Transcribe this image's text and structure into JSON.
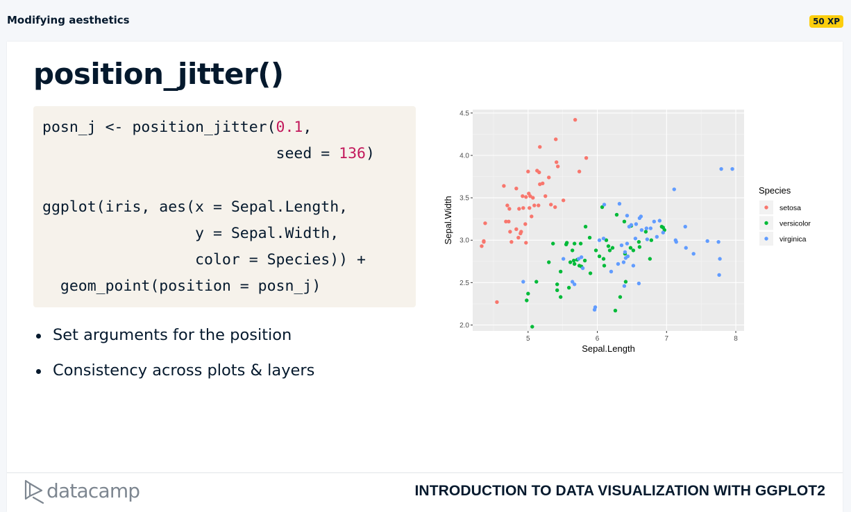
{
  "topbar": {
    "title": "Modifying aesthetics",
    "xp": "50 XP"
  },
  "slide": {
    "title": "position_jitter()",
    "code": [
      [
        [
          "posn_j <- position_jitter(",
          "t"
        ],
        [
          "0.1",
          "n"
        ],
        [
          ",",
          "t"
        ]
      ],
      [
        [
          "                          seed = ",
          "t"
        ],
        [
          "136",
          "n"
        ],
        [
          ")",
          "t"
        ]
      ],
      [
        [
          "",
          "t"
        ]
      ],
      [
        [
          "ggplot(iris, aes(x = Sepal.Length,",
          "t"
        ]
      ],
      [
        [
          "                 y = Sepal.Width,",
          "t"
        ]
      ],
      [
        [
          "                 color = Species)) +",
          "t"
        ]
      ],
      [
        [
          "  geom_point(position = posn_j)",
          "t"
        ]
      ]
    ],
    "bullets": [
      "Set arguments for the position",
      "Consistency across plots & layers"
    ]
  },
  "footer": {
    "logo": "datacamp",
    "course": "INTRODUCTION TO DATA VISUALIZATION WITH GGPLOT2"
  },
  "chart_data": {
    "type": "scatter",
    "xlabel": "Sepal.Length",
    "ylabel": "Sepal.Width",
    "xlim": [
      4.2,
      8.12
    ],
    "ylim": [
      1.93,
      4.54
    ],
    "xticks": [
      5,
      6,
      7,
      8
    ],
    "yticks": [
      2.0,
      2.5,
      3.0,
      3.5,
      4.0,
      4.5
    ],
    "ytick_labels": [
      "2.0",
      "2.5",
      "3.0",
      "3.5",
      "4.0",
      "4.5"
    ],
    "grid": true,
    "legend_title": "Species",
    "legend_position": "right",
    "series": [
      {
        "name": "setosa",
        "color": "#f8766d",
        "points": [
          [
            4.36,
            2.99
          ],
          [
            4.38,
            3.2
          ],
          [
            4.33,
            2.93
          ],
          [
            4.36,
            2.98
          ],
          [
            4.55,
            2.27
          ],
          [
            4.65,
            3.64
          ],
          [
            4.68,
            3.22
          ],
          [
            4.7,
            3.41
          ],
          [
            4.73,
            3.37
          ],
          [
            4.72,
            3.22
          ],
          [
            4.74,
            3.1
          ],
          [
            4.76,
            2.98
          ],
          [
            4.83,
            3.61
          ],
          [
            4.83,
            3.13
          ],
          [
            4.86,
            3.03
          ],
          [
            4.87,
            3.37
          ],
          [
            4.89,
            3.08
          ],
          [
            4.9,
            3.1
          ],
          [
            4.92,
            3.52
          ],
          [
            4.93,
            3.38
          ],
          [
            4.96,
            3.19
          ],
          [
            4.97,
            2.97
          ],
          [
            4.97,
            3.51
          ],
          [
            5.0,
            3.81
          ],
          [
            5.01,
            3.55
          ],
          [
            5.02,
            3.38
          ],
          [
            5.03,
            3.52
          ],
          [
            5.05,
            3.28
          ],
          [
            5.07,
            3.5
          ],
          [
            5.09,
            3.41
          ],
          [
            5.13,
            3.82
          ],
          [
            5.15,
            3.41
          ],
          [
            5.16,
            3.8
          ],
          [
            5.17,
            4.1
          ],
          [
            5.17,
            3.66
          ],
          [
            5.21,
            3.67
          ],
          [
            5.25,
            3.52
          ],
          [
            5.3,
            3.74
          ],
          [
            5.33,
            3.42
          ],
          [
            5.39,
            3.39
          ],
          [
            5.41,
            3.92
          ],
          [
            5.43,
            3.87
          ],
          [
            5.4,
            4.19
          ],
          [
            5.51,
            3.47
          ],
          [
            5.68,
            4.42
          ],
          [
            5.74,
            3.81
          ],
          [
            5.84,
            3.97
          ]
        ]
      },
      {
        "name": "versicolor",
        "color": "#00ba38",
        "points": [
          [
            5.06,
            1.98
          ],
          [
            4.98,
            2.29
          ],
          [
            5.0,
            2.37
          ],
          [
            5.12,
            2.51
          ],
          [
            5.3,
            2.74
          ],
          [
            5.36,
            2.96
          ],
          [
            5.42,
            2.48
          ],
          [
            5.42,
            2.41
          ],
          [
            5.47,
            2.33
          ],
          [
            5.47,
            2.63
          ],
          [
            5.55,
            2.95
          ],
          [
            5.56,
            2.97
          ],
          [
            5.59,
            2.44
          ],
          [
            5.61,
            2.74
          ],
          [
            5.64,
            2.88
          ],
          [
            5.66,
            2.76
          ],
          [
            5.67,
            2.96
          ],
          [
            5.67,
            2.72
          ],
          [
            5.71,
            2.77
          ],
          [
            5.74,
            2.7
          ],
          [
            5.76,
            2.96
          ],
          [
            5.77,
            2.69
          ],
          [
            5.82,
            2.76
          ],
          [
            5.83,
            3.16
          ],
          [
            5.89,
            3.03
          ],
          [
            5.9,
            2.61
          ],
          [
            5.98,
            2.88
          ],
          [
            6.03,
            2.81
          ],
          [
            6.07,
            3.39
          ],
          [
            6.1,
            2.7
          ],
          [
            6.09,
            2.78
          ],
          [
            6.13,
            3.0
          ],
          [
            6.16,
            2.93
          ],
          [
            6.18,
            2.88
          ],
          [
            6.22,
            2.91
          ],
          [
            6.26,
            2.17
          ],
          [
            6.28,
            3.3
          ],
          [
            6.33,
            2.33
          ],
          [
            6.39,
            3.22
          ],
          [
            6.4,
            2.84
          ],
          [
            6.41,
            2.51
          ],
          [
            6.49,
            3.17
          ],
          [
            6.48,
            2.91
          ],
          [
            6.52,
            2.88
          ],
          [
            6.6,
            2.98
          ],
          [
            6.61,
            2.92
          ],
          [
            6.7,
            3.1
          ],
          [
            6.76,
            2.78
          ],
          [
            6.78,
            3.0
          ],
          [
            6.93,
            3.16
          ],
          [
            6.95,
            3.15
          ],
          [
            6.97,
            3.12
          ]
        ]
      },
      {
        "name": "virginica",
        "color": "#619cff",
        "points": [
          [
            4.93,
            2.51
          ],
          [
            5.51,
            2.78
          ],
          [
            5.64,
            2.51
          ],
          [
            5.67,
            2.48
          ],
          [
            5.73,
            2.78
          ],
          [
            5.77,
            2.8
          ],
          [
            5.79,
            2.67
          ],
          [
            5.96,
            2.18
          ],
          [
            5.97,
            2.21
          ],
          [
            6.03,
            3.0
          ],
          [
            6.09,
            3.02
          ],
          [
            6.1,
            3.42
          ],
          [
            6.2,
            2.63
          ],
          [
            6.3,
            2.72
          ],
          [
            6.32,
            3.43
          ],
          [
            6.35,
            2.94
          ],
          [
            6.38,
            2.74
          ],
          [
            6.39,
            2.46
          ],
          [
            6.4,
            2.86
          ],
          [
            6.41,
            2.79
          ],
          [
            6.43,
            3.29
          ],
          [
            6.43,
            2.96
          ],
          [
            6.44,
            2.81
          ],
          [
            6.46,
            3.16
          ],
          [
            6.49,
            3.18
          ],
          [
            6.52,
            2.7
          ],
          [
            6.55,
            3.02
          ],
          [
            6.56,
            3.19
          ],
          [
            6.6,
            2.49
          ],
          [
            6.61,
            3.26
          ],
          [
            6.63,
            3.28
          ],
          [
            6.64,
            3.12
          ],
          [
            6.71,
            3.14
          ],
          [
            6.72,
            3.01
          ],
          [
            6.77,
            3.14
          ],
          [
            6.82,
            3.22
          ],
          [
            6.86,
            3.04
          ],
          [
            6.9,
            3.23
          ],
          [
            6.95,
            3.09
          ],
          [
            7.11,
            3.6
          ],
          [
            7.13,
            3.0
          ],
          [
            7.14,
            2.98
          ],
          [
            7.27,
            3.16
          ],
          [
            7.28,
            2.91
          ],
          [
            7.39,
            2.84
          ],
          [
            7.59,
            2.99
          ],
          [
            7.75,
            2.98
          ],
          [
            7.76,
            2.59
          ],
          [
            7.77,
            2.78
          ],
          [
            7.79,
            3.84
          ],
          [
            7.95,
            3.84
          ]
        ]
      }
    ]
  }
}
